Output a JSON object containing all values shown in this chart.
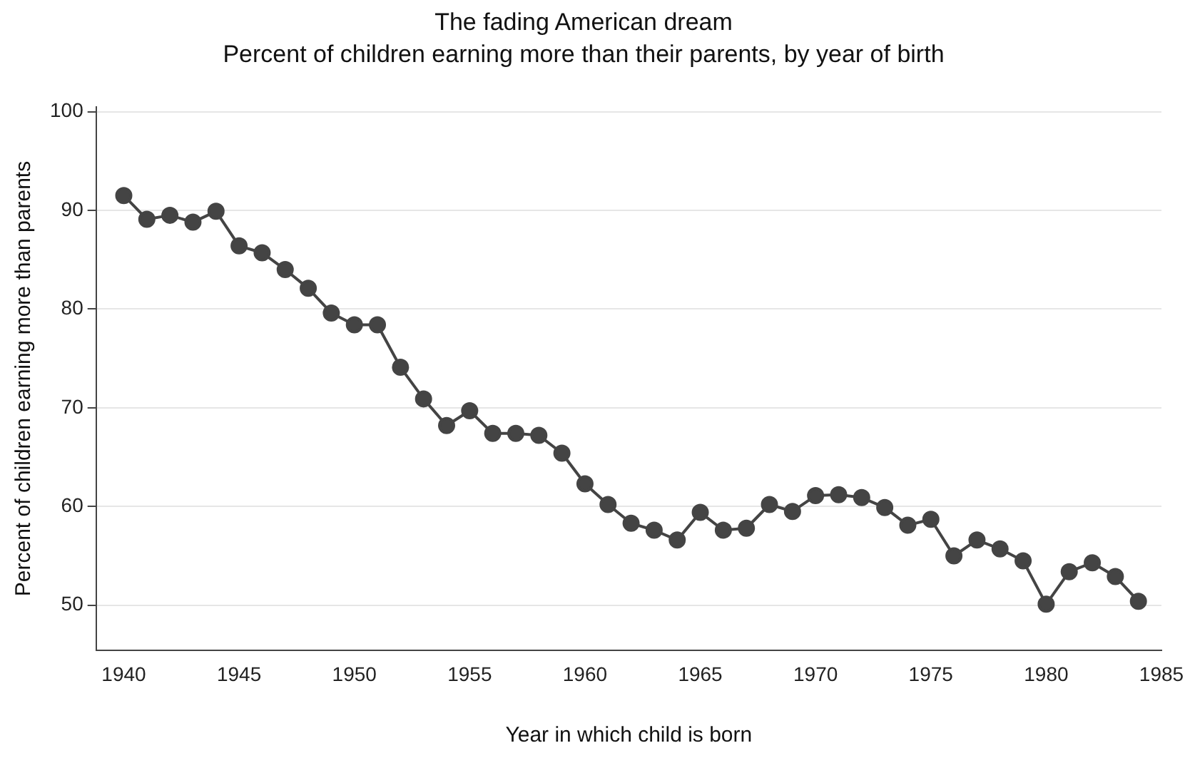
{
  "chart_data": {
    "type": "line",
    "title": "The fading American dream",
    "subtitle": "Percent of children earning more than their parents, by year of birth",
    "xlabel": "Year in which child is born",
    "ylabel": "Percent of children earning more than parents",
    "x": [
      1940,
      1941,
      1942,
      1943,
      1944,
      1945,
      1946,
      1947,
      1948,
      1949,
      1950,
      1951,
      1952,
      1953,
      1954,
      1955,
      1956,
      1957,
      1958,
      1959,
      1960,
      1961,
      1962,
      1963,
      1964,
      1965,
      1966,
      1967,
      1968,
      1969,
      1970,
      1971,
      1972,
      1973,
      1974,
      1975,
      1976,
      1977,
      1978,
      1979,
      1980,
      1981,
      1982,
      1983,
      1984
    ],
    "series": [
      {
        "color": "#444444",
        "values": [
          91.5,
          89.1,
          89.5,
          88.8,
          89.9,
          86.4,
          85.7,
          84.0,
          82.1,
          79.6,
          78.4,
          78.4,
          74.1,
          70.9,
          68.2,
          69.7,
          67.4,
          67.4,
          67.2,
          65.4,
          62.3,
          60.2,
          58.3,
          57.6,
          56.6,
          59.4,
          57.6,
          57.8,
          60.2,
          59.5,
          61.1,
          61.2,
          60.9,
          59.9,
          58.1,
          58.7,
          55.0,
          56.6,
          55.7,
          54.5,
          50.1,
          53.4,
          54.3,
          52.9,
          50.4
        ]
      }
    ],
    "xlim": [
      1938.8,
      1985
    ],
    "ylim": [
      45.4,
      100.5
    ],
    "xticks": [
      1940,
      1945,
      1950,
      1955,
      1960,
      1965,
      1970,
      1975,
      1980,
      1985
    ],
    "yticks": [
      50,
      60,
      70,
      80,
      90,
      100
    ],
    "grid": "y",
    "legend": false,
    "marker": "circle",
    "line_style": "solid"
  }
}
